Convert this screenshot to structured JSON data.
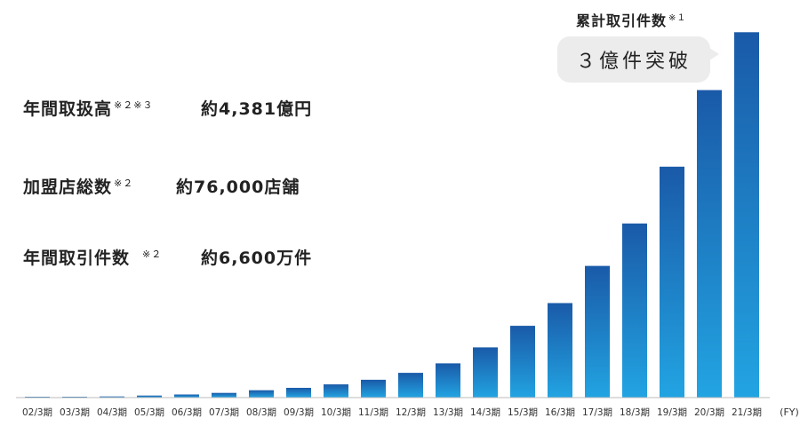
{
  "stats": [
    {
      "label": "年間取扱高",
      "note": "※２※３",
      "value": "約4,381億円"
    },
    {
      "label": "加盟店総数",
      "note": "※２",
      "value": "約76,000店舗"
    },
    {
      "label": "年間取引件数",
      "note": "※２",
      "value": "約6,600万件"
    }
  ],
  "total": {
    "label": "累計取引件数",
    "note": "※１",
    "callout": "３億件突破"
  },
  "colors": {
    "bar_top": "#1a5aa8",
    "bar_bottom": "#22a4e2",
    "axis": "#bbbbbb",
    "bubble": "#ececec",
    "text": "#222222"
  },
  "chart_data": {
    "type": "bar",
    "categories": [
      "02/3期",
      "03/3期",
      "04/3期",
      "05/3期",
      "06/3期",
      "07/3期",
      "08/3期",
      "09/3期",
      "10/3期",
      "11/3期",
      "12/3期",
      "13/3期",
      "14/3期",
      "15/3期",
      "16/3期",
      "17/3期",
      "18/3期",
      "19/3期",
      "20/3期",
      "21/3期"
    ],
    "values": [
      0.3,
      0.7,
      1.0,
      1.8,
      2.8,
      4.2,
      6.6,
      8.8,
      11.9,
      16.0,
      22.2,
      30.8,
      45.1,
      64.5,
      84.9,
      118.3,
      156.4,
      207.4,
      276.2,
      328.2
    ],
    "x_unit": "(FY)",
    "ylim": [
      0,
      330
    ],
    "grid": false,
    "legend": "none"
  }
}
